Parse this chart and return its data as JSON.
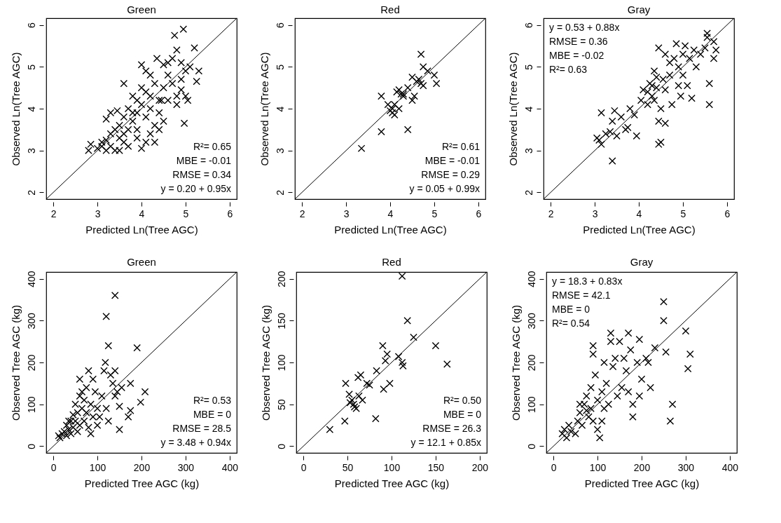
{
  "chart_data": [
    {
      "type": "scatter",
      "title": "Green",
      "xlabel": "Predicted Ln(Tree AGC)",
      "ylabel": "Observed Ln(Tree AGC)",
      "xlim": [
        1.84,
        6.16
      ],
      "ylim": [
        1.84,
        6.16
      ],
      "xticks": [
        2,
        3,
        4,
        5,
        6
      ],
      "yticks": [
        2,
        3,
        4,
        5,
        6
      ],
      "marker": "cross",
      "grid": false,
      "annotations": [
        "R²= 0.65",
        "MBE = -0.01",
        "RMSE = 0.34",
        "y = 0.20 + 0.95x"
      ],
      "series": [
        {
          "color": "#000000",
          "x": [
            2.8,
            2.85,
            3.0,
            3.1,
            3.2,
            3.3,
            3.2,
            3.3,
            3.4,
            3.2,
            3.3,
            3.5,
            3.5,
            3.6,
            3.7,
            3.6,
            3.7,
            3.8,
            3.8,
            3.9,
            3.9,
            4.0,
            4.0,
            4.0,
            4.0,
            4.1,
            4.1,
            4.2,
            4.2,
            4.2,
            4.3,
            4.3,
            4.35,
            4.4,
            4.4,
            4.5,
            4.5,
            4.5,
            4.6,
            4.6,
            4.7,
            4.7,
            4.75,
            4.8,
            4.8,
            4.8,
            4.9,
            4.95,
            4.9,
            4.97,
            5.0,
            5.05,
            5.1,
            5.2,
            5.25,
            5.3,
            3.4,
            3.5,
            3.6,
            3.7,
            3.9,
            4.1,
            4.3,
            4.4,
            3.45,
            3.9,
            4.1,
            4.2,
            4.6,
            4.9,
            5.0,
            4.45,
            3.6,
            3.8,
            3.1
          ],
          "values": [
            3.0,
            3.15,
            3.05,
            3.1,
            3.0,
            3.1,
            3.25,
            3.4,
            3.5,
            3.75,
            3.9,
            3.3,
            3.6,
            3.8,
            3.5,
            4.6,
            4.0,
            3.7,
            4.3,
            3.9,
            3.5,
            3.05,
            4.1,
            4.5,
            5.05,
            3.8,
            4.4,
            4.0,
            4.8,
            3.4,
            4.6,
            3.6,
            5.2,
            4.2,
            3.9,
            5.05,
            4.5,
            3.7,
            4.8,
            4.2,
            4.6,
            5.2,
            5.75,
            5.4,
            4.3,
            4.1,
            5.1,
            5.9,
            4.7,
            3.65,
            4.9,
            4.2,
            5.0,
            5.45,
            4.65,
            4.9,
            3.0,
            3.0,
            3.2,
            3.1,
            3.3,
            3.2,
            3.2,
            3.5,
            3.95,
            4.2,
            4.9,
            4.3,
            5.1,
            4.45,
            4.3,
            4.2,
            3.4,
            3.9,
            3.2
          ]
        },
        {
          "type": "line",
          "marker": "none",
          "color": "#000000",
          "x": [
            1.84,
            6.16
          ],
          "values": [
            1.84,
            6.16
          ]
        }
      ]
    },
    {
      "type": "scatter",
      "title": "Red",
      "xlabel": "Predicted Ln(Tree AGC)",
      "ylabel": "Observed Ln(Tree AGC)",
      "xlim": [
        1.84,
        6.16
      ],
      "ylim": [
        1.84,
        6.16
      ],
      "xticks": [
        2,
        3,
        4,
        5,
        6
      ],
      "yticks": [
        2,
        3,
        4,
        5,
        6
      ],
      "marker": "cross",
      "grid": false,
      "annotations": [
        "R²= 0.61",
        "MBE = -0.01",
        "RMSE = 0.29",
        "y = 0.05 + 0.99x"
      ],
      "series": [
        {
          "color": "#000000",
          "x": [
            3.35,
            3.8,
            3.8,
            3.95,
            4.0,
            4.05,
            4.1,
            4.1,
            4.15,
            4.2,
            4.2,
            4.3,
            4.3,
            4.4,
            4.4,
            4.5,
            4.5,
            4.55,
            4.6,
            4.7,
            4.7,
            4.75,
            4.75,
            4.85,
            5.0,
            5.05,
            4.65,
            4.25,
            4.05
          ],
          "values": [
            3.05,
            3.45,
            4.3,
            4.1,
            3.95,
            3.9,
            3.85,
            4.1,
            4.4,
            4.45,
            4.0,
            4.35,
            4.3,
            3.5,
            4.5,
            4.75,
            4.2,
            4.3,
            4.65,
            5.3,
            4.6,
            5.0,
            4.55,
            4.9,
            4.8,
            4.6,
            4.7,
            4.35,
            4.0
          ]
        },
        {
          "type": "line",
          "marker": "none",
          "color": "#000000",
          "x": [
            1.84,
            6.16
          ],
          "values": [
            1.84,
            6.16
          ]
        }
      ]
    },
    {
      "type": "scatter",
      "title": "Gray",
      "xlabel": "Predicted Ln(Tree AGC)",
      "ylabel": "Observed Ln(Tree AGC)",
      "xlim": [
        1.84,
        6.16
      ],
      "ylim": [
        1.84,
        6.16
      ],
      "xticks": [
        2,
        3,
        4,
        5,
        6
      ],
      "yticks": [
        2,
        3,
        4,
        5,
        6
      ],
      "marker": "cross",
      "grid": false,
      "annotations": [
        "y = 0.53 + 0.88x",
        "RMSE = 0.36",
        "MBE = -0.02",
        "R²= 0.63"
      ],
      "series": [
        {
          "color": "#000000",
          "x": [
            3.05,
            3.1,
            3.15,
            3.15,
            3.25,
            3.35,
            3.4,
            3.4,
            3.45,
            3.5,
            3.6,
            3.7,
            3.75,
            3.8,
            3.95,
            3.9,
            4.05,
            4.1,
            4.2,
            4.25,
            4.3,
            4.35,
            4.4,
            4.45,
            4.45,
            4.45,
            4.5,
            4.5,
            4.55,
            4.6,
            4.6,
            4.7,
            4.75,
            4.8,
            4.85,
            4.9,
            4.9,
            5.0,
            5.0,
            5.05,
            5.1,
            5.15,
            5.2,
            5.25,
            5.3,
            5.5,
            5.55,
            5.55,
            5.6,
            5.6,
            5.7,
            5.7,
            5.75,
            4.3,
            4.35,
            4.2,
            4.4,
            4.6,
            4.7,
            4.95,
            5.4
          ],
          "values": [
            3.3,
            3.25,
            3.15,
            3.9,
            3.4,
            3.45,
            2.75,
            3.7,
            3.95,
            3.35,
            3.8,
            3.5,
            3.55,
            4.0,
            3.35,
            3.85,
            4.2,
            4.45,
            4.1,
            4.6,
            4.3,
            4.9,
            4.5,
            5.45,
            3.7,
            3.15,
            3.2,
            4.0,
            4.7,
            3.65,
            5.3,
            4.8,
            4.1,
            5.2,
            5.55,
            5.0,
            4.55,
            5.3,
            4.8,
            5.5,
            4.55,
            5.2,
            4.25,
            5.4,
            5.0,
            5.45,
            5.8,
            5.7,
            4.6,
            4.1,
            5.6,
            5.2,
            5.4,
            4.55,
            4.2,
            4.4,
            4.75,
            4.45,
            5.1,
            4.3,
            5.3
          ]
        },
        {
          "type": "line",
          "marker": "none",
          "color": "#000000",
          "x": [
            1.84,
            6.16
          ],
          "values": [
            1.84,
            6.16
          ]
        }
      ]
    },
    {
      "type": "scatter",
      "title": "Green",
      "xlabel": "Predicted Tree AGC (kg)",
      "ylabel": "Observed Tree AGC (kg)",
      "xlim": [
        -16,
        416
      ],
      "ylim": [
        -16,
        416
      ],
      "xticks": [
        0,
        100,
        200,
        300,
        400
      ],
      "yticks": [
        0,
        100,
        200,
        300,
        400
      ],
      "marker": "cross",
      "grid": false,
      "annotations": [
        "R²= 0.53",
        "MBE = 0",
        "RMSE = 28.5",
        "y = 3.48 + 0.94x"
      ],
      "series": [
        {
          "color": "#000000",
          "x": [
            12,
            15,
            20,
            25,
            30,
            30,
            35,
            40,
            40,
            45,
            45,
            50,
            50,
            55,
            55,
            60,
            60,
            60,
            65,
            70,
            70,
            75,
            75,
            80,
            80,
            85,
            90,
            90,
            95,
            100,
            100,
            110,
            115,
            118,
            120,
            120,
            125,
            125,
            130,
            135,
            140,
            140,
            140,
            145,
            150,
            150,
            155,
            170,
            175,
            175,
            190,
            198,
            208,
            85,
            65,
            105,
            35
          ],
          "values": [
            25,
            20,
            30,
            35,
            25,
            50,
            40,
            60,
            30,
            75,
            45,
            100,
            60,
            80,
            35,
            160,
            120,
            50,
            90,
            110,
            60,
            140,
            80,
            180,
            45,
            100,
            160,
            70,
            130,
            90,
            50,
            120,
            180,
            200,
            310,
            90,
            240,
            60,
            170,
            150,
            360,
            120,
            180,
            130,
            40,
            95,
            140,
            70,
            150,
            85,
            235,
            105,
            130,
            30,
            130,
            70,
            60
          ]
        },
        {
          "type": "line",
          "marker": "none",
          "color": "#000000",
          "x": [
            -16,
            416
          ],
          "values": [
            -16,
            416
          ]
        }
      ]
    },
    {
      "type": "scatter",
      "title": "Red",
      "xlabel": "Predicted Tree AGC (kg)",
      "ylabel": "Observed Tree AGC (kg)",
      "xlim": [
        -8,
        208
      ],
      "ylim": [
        -8,
        208
      ],
      "xticks": [
        0,
        50,
        100,
        150,
        200
      ],
      "yticks": [
        0,
        50,
        100,
        150,
        200
      ],
      "marker": "cross",
      "grid": false,
      "annotations": [
        "R²= 0.50",
        "MBE = 0",
        "RMSE = 26.3",
        "y = 12.1 + 0.85x"
      ],
      "series": [
        {
          "color": "#000000",
          "x": [
            30,
            47,
            48,
            52,
            53,
            55,
            57,
            58,
            60,
            62,
            63,
            65,
            67,
            72,
            75,
            82,
            83,
            90,
            91,
            93,
            95,
            98,
            108,
            112,
            112,
            113,
            118,
            125,
            150,
            163
          ],
          "values": [
            20,
            30,
            75,
            62,
            52,
            55,
            50,
            47,
            45,
            82,
            60,
            85,
            55,
            75,
            73,
            33,
            90,
            120,
            68,
            102,
            110,
            75,
            107,
            203,
            100,
            96,
            150,
            130,
            120,
            98
          ]
        },
        {
          "type": "line",
          "marker": "none",
          "color": "#000000",
          "x": [
            -8,
            208
          ],
          "values": [
            -8,
            208
          ]
        }
      ]
    },
    {
      "type": "scatter",
      "title": "Gray",
      "xlabel": "Predicted Tree AGC (kg)",
      "ylabel": "Observed Tree AGC (kg)",
      "xlim": [
        -16,
        416
      ],
      "ylim": [
        -16,
        416
      ],
      "xticks": [
        0,
        100,
        200,
        300,
        400
      ],
      "yticks": [
        0,
        100,
        200,
        300,
        400
      ],
      "marker": "cross",
      "grid": false,
      "annotations": [
        "y = 18.3 + 0.83x",
        "RMSE = 42.1",
        "MBE = 0",
        "R²= 0.54"
      ],
      "series": [
        {
          "color": "#000000",
          "x": [
            20,
            25,
            30,
            35,
            40,
            50,
            55,
            60,
            65,
            70,
            75,
            80,
            85,
            85,
            90,
            90,
            95,
            100,
            100,
            105,
            110,
            110,
            115,
            120,
            125,
            130,
            130,
            135,
            140,
            145,
            150,
            155,
            160,
            165,
            170,
            170,
            175,
            180,
            180,
            190,
            195,
            195,
            200,
            210,
            215,
            220,
            230,
            250,
            250,
            255,
            265,
            270,
            300,
            305,
            310,
            60,
            75,
            90,
            115
          ],
          "values": [
            30,
            40,
            20,
            50,
            35,
            30,
            60,
            80,
            50,
            100,
            120,
            70,
            90,
            140,
            240,
            220,
            170,
            110,
            40,
            20,
            60,
            130,
            200,
            150,
            100,
            270,
            250,
            190,
            210,
            120,
            250,
            140,
            210,
            180,
            270,
            130,
            230,
            100,
            70,
            200,
            255,
            120,
            160,
            210,
            200,
            140,
            235,
            345,
            300,
            225,
            60,
            100,
            275,
            185,
            220,
            100,
            85,
            60,
            90
          ]
        },
        {
          "type": "line",
          "marker": "none",
          "color": "#000000",
          "x": [
            -16,
            416
          ],
          "values": [
            -16,
            416
          ]
        }
      ]
    }
  ]
}
